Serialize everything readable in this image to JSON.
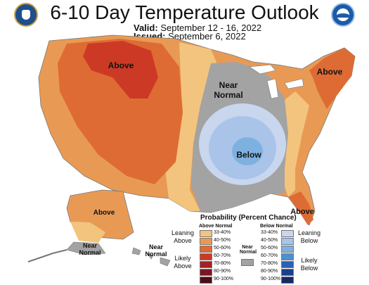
{
  "header": {
    "title": "6-10 Day Temperature Outlook",
    "valid_label": "Valid:",
    "valid_value": "September 12 - 16, 2022",
    "issued_label": "Issued:",
    "issued_value": "September 6, 2022"
  },
  "logos": {
    "left": "doc-seal-icon",
    "right": "noaa-logo-icon"
  },
  "map_labels": {
    "above_west": "Above",
    "near_normal": "Near",
    "near_normal_2": "Normal",
    "above_northeast": "Above",
    "below_central": "Below",
    "above_alaska": "Above",
    "above_florida": "Above",
    "near_normal_alaska": "Near",
    "near_normal_alaska_2": "Normal",
    "near_normal_hawaii": "Near",
    "near_normal_hawaii_2": "Normal"
  },
  "legend": {
    "title": "Probability (Percent Chance)",
    "above_header": "Above Normal",
    "below_header": "Below Normal",
    "near_header_1": "Near",
    "near_header_2": "Normal",
    "leaning_above_1": "Leaning",
    "leaning_above_2": "Above",
    "likely_above_1": "Likely",
    "likely_above_2": "Above",
    "leaning_below_1": "Leaning",
    "leaning_below_2": "Below",
    "likely_below_1": "Likely",
    "likely_below_2": "Below",
    "above_bins": [
      {
        "label": "33-40%",
        "color": "#f3c47e"
      },
      {
        "label": "40-50%",
        "color": "#e89a55"
      },
      {
        "label": "50-60%",
        "color": "#df6b34"
      },
      {
        "label": "60-70%",
        "color": "#cc3a25"
      },
      {
        "label": "70-80%",
        "color": "#a61f24"
      },
      {
        "label": "80-90%",
        "color": "#7d1420"
      },
      {
        "label": "90-100%",
        "color": "#4f0c15"
      }
    ],
    "below_bins": [
      {
        "label": "33-40%",
        "color": "#c8d6ee"
      },
      {
        "label": "40-50%",
        "color": "#a9c4e8"
      },
      {
        "label": "50-60%",
        "color": "#7fb1e0"
      },
      {
        "label": "60-70%",
        "color": "#4f8fd0"
      },
      {
        "label": "70-80%",
        "color": "#2a62b2"
      },
      {
        "label": "80-90%",
        "color": "#1d3f8c"
      },
      {
        "label": "90-100%",
        "color": "#142a66"
      }
    ],
    "near_color": "#a3a3a3"
  }
}
